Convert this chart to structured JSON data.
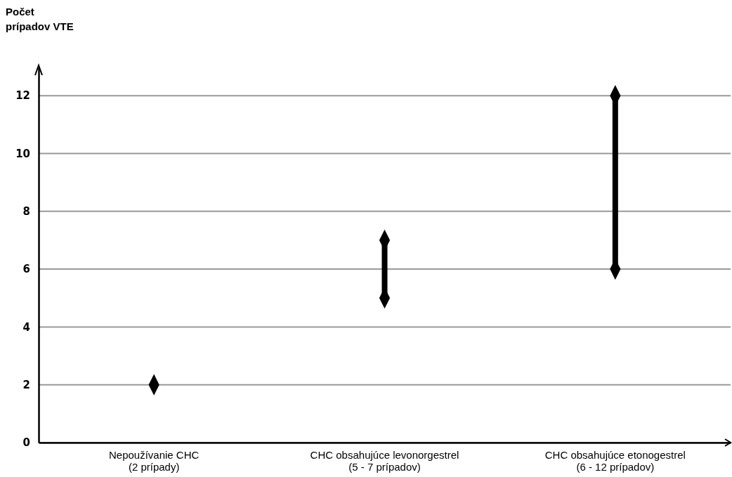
{
  "chart_data": {
    "type": "line",
    "ylabel": "Počet\nprípadov VTE",
    "categories": [
      "Nepoužívanie CHC\n(2 prípady)",
      "CHC obsahujúce levonorgestrel\n(5 - 7 prípadov)",
      "CHC obsahujúce etonogestrel\n(6 - 12 prípadov)"
    ],
    "series": [
      {
        "type": "scatter",
        "color": "#000000",
        "x": [
          "Nepoužívanie CHC\n(2 prípady)"
        ],
        "values": [
          2
        ]
      },
      {
        "color": "#000000",
        "x": [
          "CHC obsahujúce levonorgestrel\n(5 - 7 prípadov)",
          "CHC obsahujúce levonorgestrel\n(5 - 7 prípadov)"
        ],
        "values": [
          5,
          7
        ]
      },
      {
        "color": "#000000",
        "x": [
          "CHC obsahujúce etonogestrel\n(6 - 12 prípadov)",
          "CHC obsahujúce etonogestrel\n(6 - 12 prípadov)"
        ],
        "values": [
          6,
          12
        ]
      }
    ],
    "marker": "diamond",
    "ylim": [
      0,
      13
    ],
    "yticks": [
      0,
      2,
      4,
      6,
      8,
      10,
      12
    ],
    "grid": "y"
  }
}
